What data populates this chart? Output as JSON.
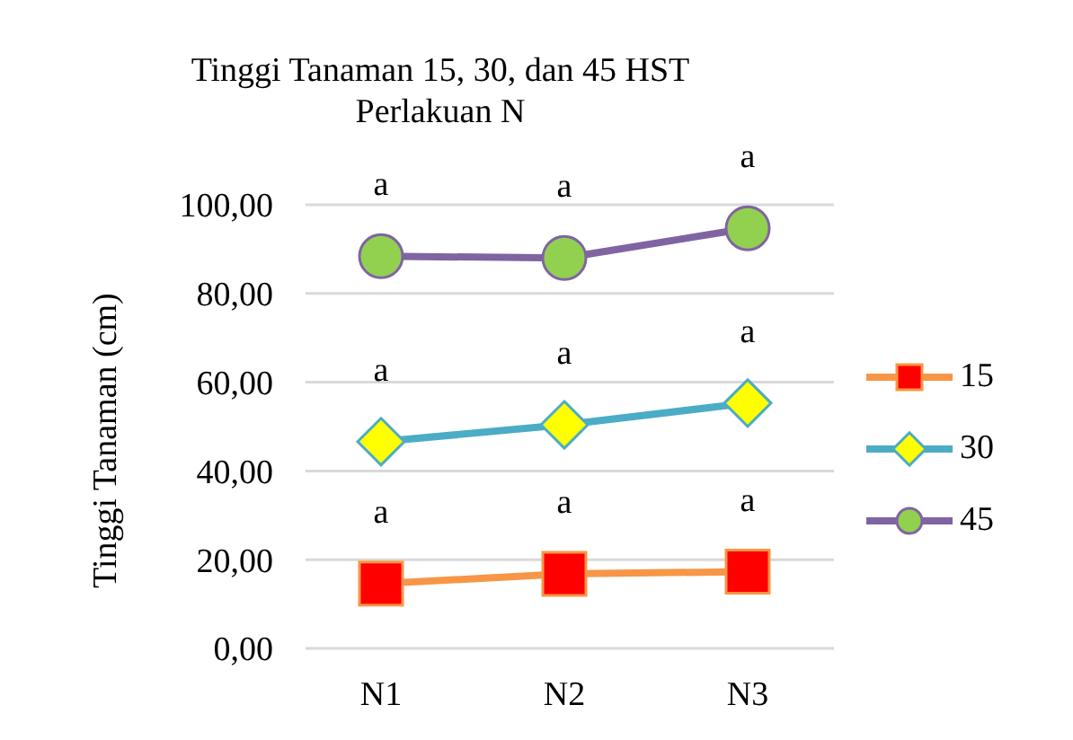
{
  "chart_data": {
    "type": "line",
    "title": "Tinggi Tanaman 15, 30, dan 45 HST",
    "subtitle": "Perlakuan N",
    "ylabel": "Tinggi Tanaman (cm)",
    "categories": [
      "N1",
      "N2",
      "N3"
    ],
    "series": [
      {
        "name": "15",
        "color": "#f79646",
        "marker": "square",
        "colors": [
          "#ff0000",
          "#ff0000",
          "#ff0000"
        ],
        "values": [
          14.6,
          16.8,
          17.3
        ]
      },
      {
        "name": "30",
        "color": "#4bacc6",
        "marker": "diamond",
        "colors": [
          "#ffff00",
          "#ffff00",
          "#ffff00"
        ],
        "values": [
          46.6,
          50.4,
          55.3
        ]
      },
      {
        "name": "45",
        "color": "#8064a2",
        "marker": "circle",
        "colors": [
          "#92d050",
          "#92d050",
          "#92d050"
        ],
        "values": [
          88.4,
          88.0,
          94.7
        ]
      }
    ],
    "ylim": [
      0,
      100
    ],
    "yticks": [
      {
        "value": 0,
        "label": "0,00"
      },
      {
        "value": 20,
        "label": "20,00"
      },
      {
        "value": 40,
        "label": "40,00"
      },
      {
        "value": 60,
        "label": "60,00"
      },
      {
        "value": 80,
        "label": "80,00"
      },
      {
        "value": 100,
        "label": "100,00"
      }
    ],
    "grid": "y",
    "legend": "right",
    "annotations": [
      {
        "text": "a",
        "x": "N1",
        "y": 14.6
      },
      {
        "text": "a",
        "x": "N2",
        "y": 16.8
      },
      {
        "text": "a",
        "x": "N3",
        "y": 17.3
      },
      {
        "text": "a",
        "x": "N1",
        "y": 46.6
      },
      {
        "text": "a",
        "x": "N2",
        "y": 50.4
      },
      {
        "text": "a",
        "x": "N3",
        "y": 55.3
      },
      {
        "text": "a",
        "x": "N1",
        "y": 88.4
      },
      {
        "text": "a",
        "x": "N2",
        "y": 88.0
      },
      {
        "text": "a",
        "x": "N3",
        "y": 94.7
      }
    ]
  }
}
